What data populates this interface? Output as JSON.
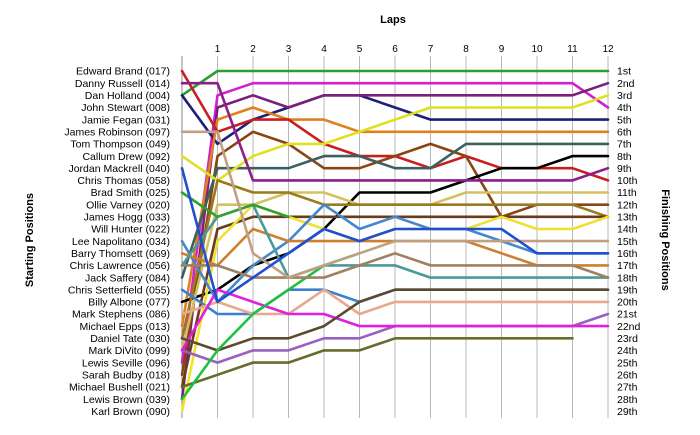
{
  "chart_data": {
    "type": "line",
    "title": "",
    "xlabel": "Laps",
    "ylabel_left": "Starting Positions",
    "ylabel_right": "Finishing Positions",
    "x_ticks": [
      1,
      2,
      3,
      4,
      5,
      6,
      7,
      8,
      9,
      10,
      11,
      12
    ],
    "x_range": [
      0,
      12
    ],
    "y_range": [
      1,
      29
    ],
    "grid": "vertical",
    "starting_labels": [
      "Edward Brand (017)",
      "Danny Russell (014)",
      "Dan Holland (004)",
      "John Stewart (008)",
      "Jamie Fegan (031)",
      "James Robinson (097)",
      "Tom Thompson (049)",
      "Callum Drew (092)",
      "Jordan Mackrell (040)",
      "Chris Thomas (058)",
      "Brad Smith (025)",
      "Ollie Varney (020)",
      "James Hogg (033)",
      "Will Hunter (022)",
      "Lee Napolitano (034)",
      "Barry Thomsett (069)",
      "Chris Lawrence (056)",
      "Jack Saffery (084)",
      "Chris Setterfield (055)",
      "Billy Albone (077)",
      "Mark Stephens (086)",
      "Michael Epps (013)",
      "Daniel Tate (030)",
      "Mark DiVito (099)",
      "Lewis Seville (096)",
      "Sarah Budby (018)",
      "Michael Bushell (021)",
      "Lewis Brown (039)",
      "Karl Brown (090)"
    ],
    "finishing_labels": [
      "1st",
      "2nd",
      "3rd",
      "4th",
      "5th",
      "6th",
      "7th",
      "8th",
      "9th",
      "10th",
      "11th",
      "12th",
      "13th",
      "14th",
      "15th",
      "16th",
      "17th",
      "18th",
      "19th",
      "20th",
      "21st",
      "22nd",
      "23rd",
      "24th",
      "25th",
      "26th",
      "27th",
      "28th",
      "29th"
    ],
    "series": [
      {
        "color": "#2e9e2e",
        "positions": [
          3,
          1,
          1,
          1,
          1,
          1,
          1,
          1,
          1,
          1,
          1,
          1,
          1
        ]
      },
      {
        "color": "#d020d0",
        "positions": [
          25,
          3,
          2,
          2,
          2,
          2,
          2,
          2,
          2,
          2,
          2,
          2,
          4
        ]
      },
      {
        "color": "#1f1f7a",
        "positions": [
          3,
          7,
          5,
          4,
          3,
          3,
          4,
          5,
          5,
          5,
          5,
          5,
          5
        ]
      },
      {
        "color": "#7a1f7a",
        "positions": [
          28,
          4,
          3,
          4,
          3,
          3,
          3,
          3,
          3,
          3,
          3,
          3,
          2
        ]
      },
      {
        "color": "#e08020",
        "positions": [
          22,
          5,
          4,
          5,
          5,
          6,
          6,
          6,
          6,
          6,
          6,
          6,
          6
        ]
      },
      {
        "color": "#c81e1e",
        "positions": [
          1,
          6,
          5,
          5,
          7,
          8,
          8,
          9,
          8,
          9,
          9,
          9,
          10
        ]
      },
      {
        "color": "#8b4513",
        "positions": [
          26,
          8,
          6,
          7,
          9,
          9,
          8,
          7,
          8,
          13,
          12,
          12,
          12
        ]
      },
      {
        "color": "#3c6060",
        "positions": [
          18,
          9,
          9,
          9,
          8,
          8,
          9,
          9,
          7,
          7,
          7,
          7,
          7
        ]
      },
      {
        "color": "#000000",
        "positions": [
          20,
          19,
          17,
          16,
          14,
          11,
          11,
          11,
          10,
          9,
          9,
          8,
          8
        ]
      },
      {
        "color": "#e0e020",
        "positions": [
          8,
          10,
          8,
          7,
          7,
          6,
          5,
          4,
          4,
          4,
          4,
          4,
          3
        ]
      },
      {
        "color": "#d4c060",
        "positions": [
          24,
          12,
          12,
          11,
          11,
          12,
          12,
          12,
          11,
          11,
          11,
          11,
          11
        ]
      },
      {
        "color": "#8a1e8a",
        "positions": [
          2,
          2,
          10,
          10,
          10,
          10,
          10,
          10,
          10,
          10,
          10,
          10,
          9
        ]
      },
      {
        "color": "#9a7a1e",
        "positions": [
          23,
          10,
          11,
          11,
          12,
          12,
          12,
          12,
          12,
          12,
          12,
          12,
          13
        ]
      },
      {
        "color": "#6a3a1a",
        "positions": [
          27,
          14,
          13,
          13,
          13,
          13,
          13,
          13,
          13,
          13,
          13,
          13,
          13
        ]
      },
      {
        "color": "#f0e030",
        "positions": [
          29,
          15,
          12,
          13,
          14,
          15,
          14,
          14,
          14,
          13,
          14,
          14,
          13
        ]
      },
      {
        "color": "#4488cc",
        "positions": [
          15,
          20,
          17,
          15,
          12,
          14,
          13,
          14,
          14,
          15,
          16,
          16,
          16
        ]
      },
      {
        "color": "#cc8030",
        "positions": [
          16,
          17,
          14,
          15,
          15,
          15,
          15,
          15,
          15,
          16,
          17,
          17,
          17
        ]
      },
      {
        "color": "#4a9a9a",
        "positions": [
          17,
          13,
          12,
          18,
          17,
          17,
          17,
          18,
          18,
          18,
          18,
          18,
          18
        ]
      },
      {
        "color": "#3a80d0",
        "positions": [
          19,
          21,
          21,
          19,
          19,
          20,
          19,
          19,
          19,
          19,
          19,
          19,
          19
        ]
      },
      {
        "color": "#e8a890",
        "positions": [
          21,
          20,
          21,
          21,
          19,
          21,
          20,
          20,
          20,
          20,
          20,
          20,
          20
        ]
      },
      {
        "color": "#9a60c0",
        "positions": [
          24,
          25,
          24,
          24,
          23,
          23,
          22,
          22,
          22,
          22,
          22,
          22,
          21
        ]
      },
      {
        "color": "#e020e0",
        "positions": [
          24,
          19,
          20,
          21,
          21,
          22,
          22,
          22,
          22,
          22,
          22,
          22,
          22
        ]
      },
      {
        "color": "#5a4a30",
        "positions": [
          23,
          24,
          23,
          23,
          22,
          20,
          19,
          19,
          19,
          19,
          19,
          19,
          19
        ]
      },
      {
        "color": "#6a6a2a",
        "positions": [
          27,
          26,
          25,
          25,
          24,
          24,
          23,
          23,
          23,
          23,
          23,
          23
        ]
      },
      {
        "color": "#20c040",
        "positions": [
          28,
          24,
          21,
          19,
          17,
          16
        ]
      },
      {
        "color": "#30a030",
        "positions": [
          11,
          13,
          12,
          13
        ]
      },
      {
        "color": "#a08060",
        "positions": [
          17,
          17,
          18,
          18,
          18,
          17,
          16,
          17,
          17,
          17,
          17,
          17,
          18
        ]
      },
      {
        "color": "#c0a080",
        "positions": [
          6,
          6,
          16,
          18,
          17,
          16,
          15,
          15,
          15,
          15,
          15,
          15,
          15
        ]
      },
      {
        "color": "#2050d0",
        "positions": [
          9,
          20,
          18,
          16,
          14,
          15,
          14,
          14,
          14,
          14,
          16,
          16,
          16
        ]
      }
    ]
  }
}
